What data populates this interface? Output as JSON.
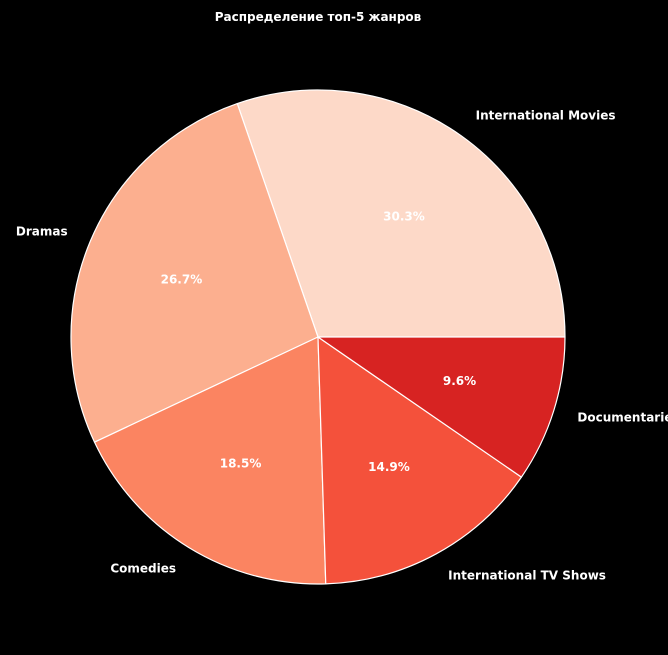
{
  "chart_data": {
    "type": "pie",
    "title": "Распределение топ-5 жанров",
    "categories": [
      "International Movies",
      "Dramas",
      "Comedies",
      "International TV Shows",
      "Documentaries"
    ],
    "values": [
      30.3,
      26.7,
      18.5,
      14.9,
      9.6
    ],
    "percent_labels": [
      "30.3%",
      "26.7%",
      "18.5%",
      "14.9%",
      "9.6%"
    ],
    "colors": [
      "#fdd9c8",
      "#fcaf8f",
      "#fb8461",
      "#f4513b",
      "#d72322"
    ],
    "background": "#000000",
    "edge_color": "#ffffff",
    "start_angle_deg": 0,
    "direction": "counterclockwise"
  }
}
